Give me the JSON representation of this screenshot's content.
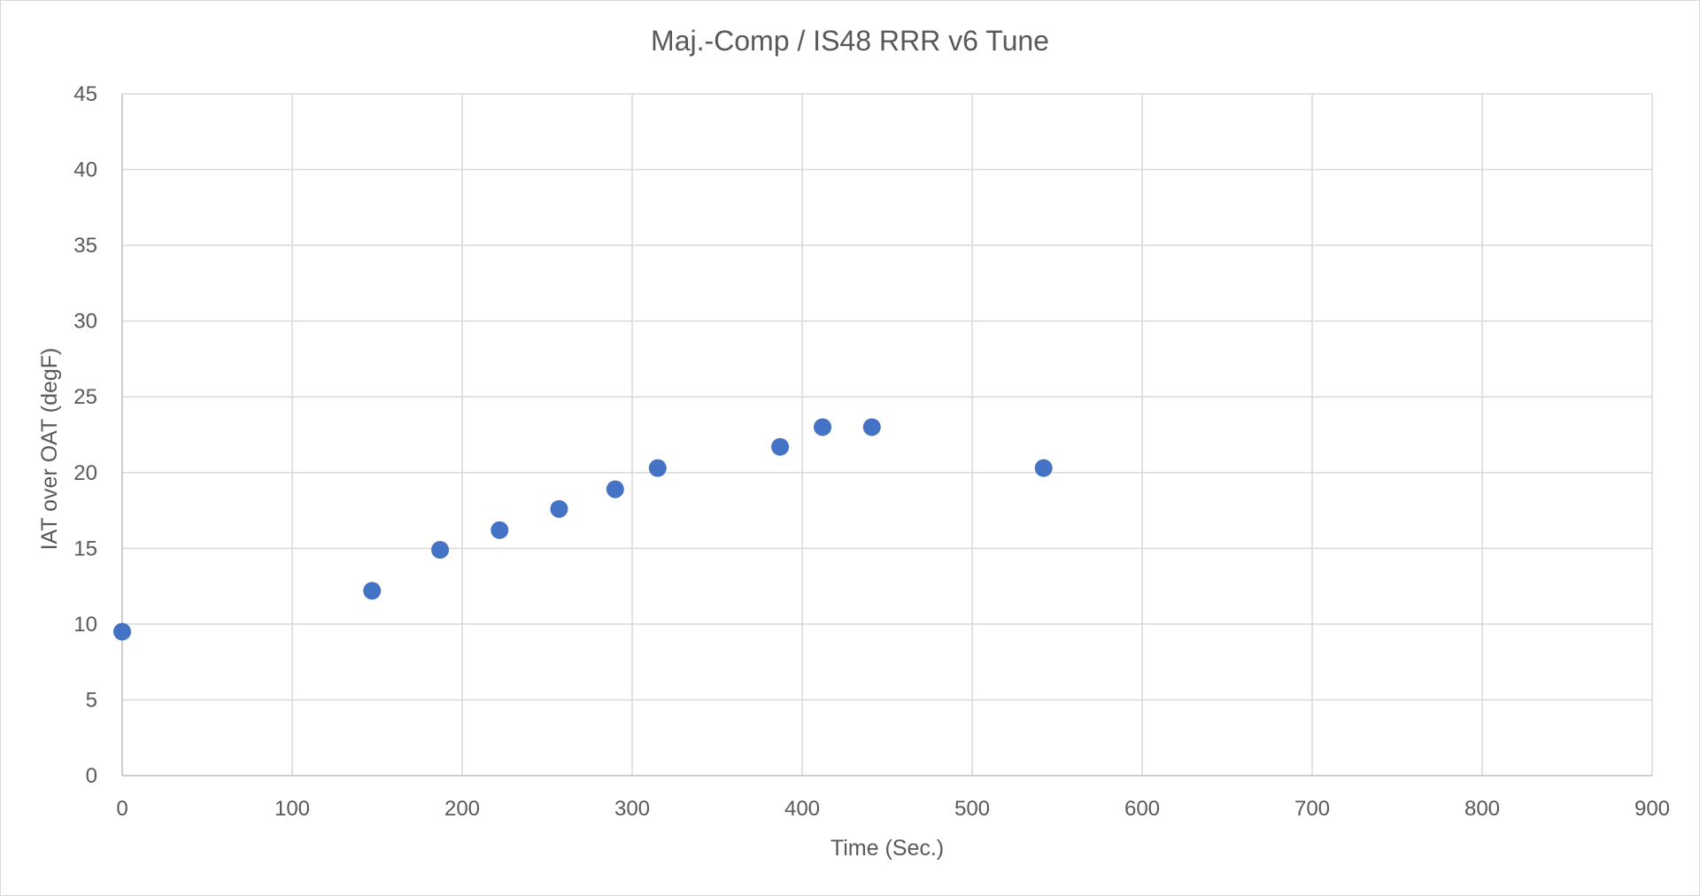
{
  "chart_data": {
    "type": "scatter",
    "title": "Maj.-Comp / IS48 RRR v6 Tune",
    "xlabel": "Time (Sec.)",
    "ylabel": "IAT over OAT (degF)",
    "xlim": [
      0,
      900
    ],
    "ylim": [
      0,
      45
    ],
    "xticks": [
      0,
      100,
      200,
      300,
      400,
      500,
      600,
      700,
      800,
      900
    ],
    "yticks": [
      0,
      5,
      10,
      15,
      20,
      25,
      30,
      35,
      40,
      45
    ],
    "grid": true,
    "legend": "none",
    "color": "#4472c4",
    "series": [
      {
        "x": [
          0,
          147,
          187,
          222,
          257,
          290,
          315,
          387,
          412,
          441,
          542
        ],
        "y": [
          9.5,
          12.2,
          14.9,
          16.2,
          17.6,
          18.9,
          20.3,
          21.7,
          23.0,
          23.0,
          20.3
        ]
      }
    ]
  }
}
